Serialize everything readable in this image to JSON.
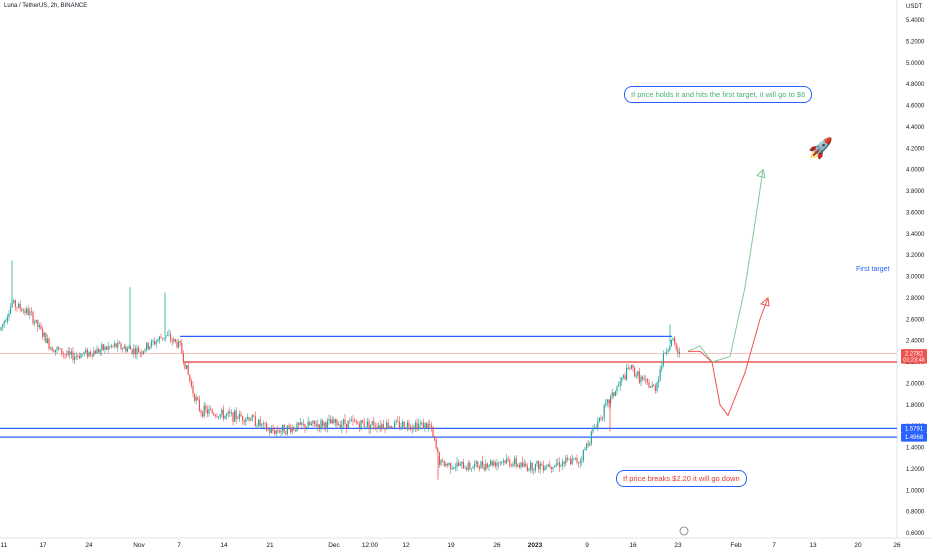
{
  "header": {
    "title": "Luna / TetherUS, 2h, BINANCE"
  },
  "chart_data": {
    "type": "candlestick",
    "currency": "USDT",
    "y_ticks": [
      "5.4000",
      "5.2000",
      "5.0000",
      "4.8000",
      "4.6000",
      "4.4000",
      "4.2000",
      "4.0000",
      "3.8000",
      "3.6000",
      "3.4000",
      "3.2000",
      "3.0000",
      "2.8000",
      "2.6000",
      "2.4000",
      "2.2000",
      "2.0000",
      "1.8000",
      "1.6000",
      "1.4000",
      "1.2000",
      "1.0000",
      "0.8000",
      "0.6000"
    ],
    "y_tick_values": [
      5.4,
      5.2,
      5.0,
      4.8,
      4.6,
      4.4,
      4.2,
      4.0,
      3.8,
      3.6,
      3.4,
      3.2,
      3.0,
      2.8,
      2.6,
      2.4,
      2.2,
      2.0,
      1.8,
      1.6,
      1.4,
      1.2,
      1.0,
      0.8,
      0.6
    ],
    "x_ticks": [
      "11",
      "17",
      "24",
      "Nov",
      "7",
      "14",
      "21",
      "Dec",
      "12:00",
      "12",
      "19",
      "26",
      "2023",
      "9",
      "16",
      "23",
      "Feb",
      "7",
      "13",
      "20",
      "26"
    ],
    "price_path": [
      [
        0,
        2.5
      ],
      [
        12,
        2.75
      ],
      [
        30,
        2.65
      ],
      [
        50,
        2.35
      ],
      [
        70,
        2.25
      ],
      [
        95,
        2.3
      ],
      [
        115,
        2.35
      ],
      [
        140,
        2.3
      ],
      [
        165,
        2.45
      ],
      [
        180,
        2.35
      ],
      [
        192,
        1.95
      ],
      [
        200,
        1.75
      ],
      [
        225,
        1.7
      ],
      [
        250,
        1.68
      ],
      [
        270,
        1.55
      ],
      [
        290,
        1.58
      ],
      [
        320,
        1.62
      ],
      [
        345,
        1.63
      ],
      [
        370,
        1.62
      ],
      [
        395,
        1.61
      ],
      [
        415,
        1.62
      ],
      [
        430,
        1.6
      ],
      [
        440,
        1.25
      ],
      [
        470,
        1.22
      ],
      [
        505,
        1.28
      ],
      [
        525,
        1.22
      ],
      [
        555,
        1.25
      ],
      [
        580,
        1.28
      ],
      [
        595,
        1.6
      ],
      [
        610,
        1.85
      ],
      [
        630,
        2.15
      ],
      [
        645,
        2.0
      ],
      [
        655,
        1.95
      ],
      [
        665,
        2.3
      ],
      [
        672,
        2.4
      ],
      [
        680,
        2.25
      ]
    ],
    "spikes": [
      [
        12,
        3.15
      ],
      [
        130,
        2.9
      ],
      [
        165,
        2.85
      ],
      [
        438,
        1.1
      ],
      [
        610,
        1.55
      ],
      [
        670,
        2.55
      ]
    ],
    "current_price": "2.2782",
    "current_price_value": 2.2782,
    "countdown": "01:23:48",
    "levels": [
      {
        "label": "resistance",
        "value": 2.44,
        "color": "#2962ff"
      },
      {
        "label": "breakdown",
        "value": 2.2,
        "color": "#e53935"
      },
      {
        "label": "1.5791",
        "value": 1.5791,
        "color": "#2962ff"
      },
      {
        "label": "1.4968",
        "value": 1.4968,
        "color": "#2962ff"
      }
    ],
    "projection_up": [
      [
        688,
        2.3
      ],
      [
        700,
        2.35
      ],
      [
        712,
        2.2
      ],
      [
        730,
        2.25
      ],
      [
        745,
        2.9
      ],
      [
        755,
        3.5
      ],
      [
        763,
        4.0
      ]
    ],
    "projection_down": [
      [
        688,
        2.3
      ],
      [
        700,
        2.3
      ],
      [
        712,
        2.2
      ],
      [
        720,
        1.8
      ],
      [
        728,
        1.7
      ],
      [
        745,
        2.1
      ],
      [
        760,
        2.6
      ],
      [
        768,
        2.8
      ]
    ],
    "annotations": {
      "up_text": "If price holds it and hits the first target, it will go to $6",
      "down_text": "If price breaks $2.20 it will go down",
      "first_target": "First target"
    },
    "colors": {
      "up": "#26a69a",
      "down": "#ef5350",
      "proj_up": "#81c995",
      "proj_down": "#ef5350",
      "accent": "#2962ff"
    }
  }
}
